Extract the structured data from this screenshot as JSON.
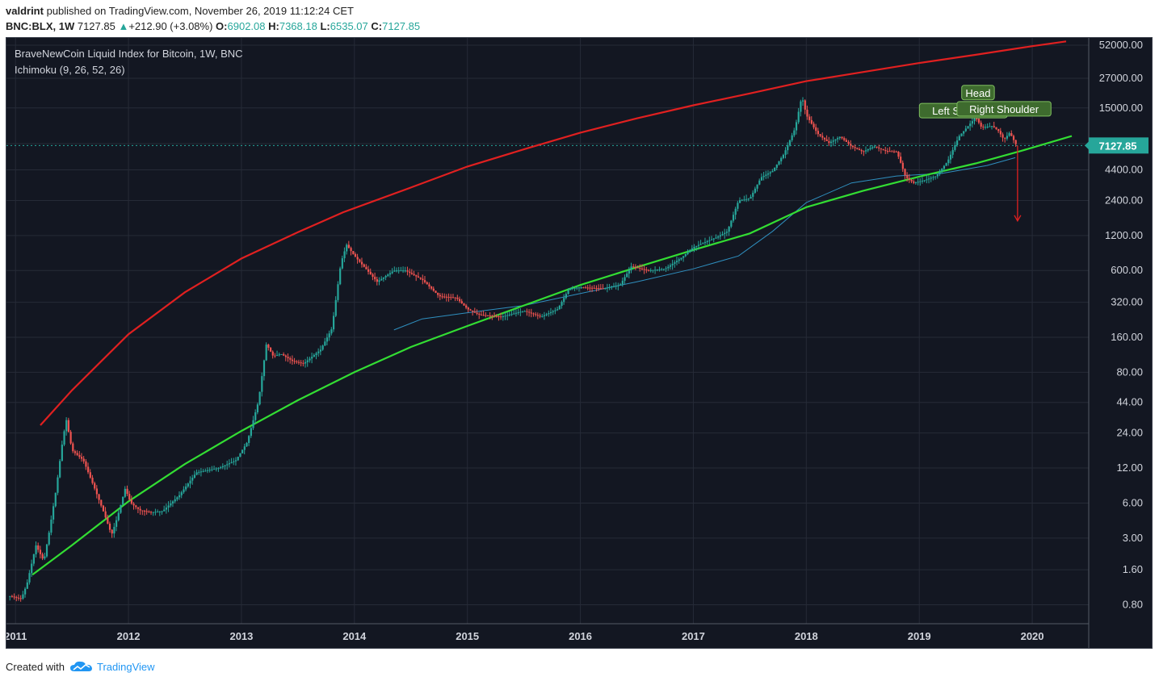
{
  "header": {
    "author": "valdrint",
    "published": "published on TradingView.com, November 26, 2019 11:12:24 CET"
  },
  "quote": {
    "symbol": "BNC:BLX, 1W",
    "last": "7127.85",
    "change_arrow": "▲",
    "change": "+212.90 (+3.08%)",
    "o_label": "O:",
    "o_value": "6902.08",
    "h_label": "H:",
    "h_value": "7368.18",
    "l_label": "L:",
    "l_value": "6535.07",
    "c_label": "C:",
    "c_value": "7127.85"
  },
  "footer": {
    "created_with": "Created with",
    "brand": "TradingView",
    "icon": "tradingview-cloud-icon"
  },
  "colors": {
    "background": "#131722",
    "up": "#26a69a",
    "down": "#ef5350",
    "resistance": "#e02020",
    "support": "#33dd33",
    "ichimoku": "#2f8fbf",
    "price_tag": "#26a69a",
    "label_bg": "#3e6b2e"
  },
  "chart_data": {
    "type": "candlestick",
    "title": "BraveNewCoin Liquid Index for Bitcoin, 1W, BNC",
    "indicator": "Ichimoku (9, 26, 52, 26)",
    "y_scale": "log",
    "ylim": [
      0.55,
      60000
    ],
    "xlim": [
      2010.92,
      2020.5
    ],
    "x_ticks": [
      "2011",
      "2012",
      "2013",
      "2014",
      "2015",
      "2016",
      "2017",
      "2018",
      "2019",
      "2020"
    ],
    "y_ticks": [
      "52000.00",
      "27000.00",
      "15000.00",
      "7400.00",
      "4400.00",
      "2400.00",
      "1200.00",
      "600.00",
      "320.00",
      "160.00",
      "80.00",
      "44.00",
      "24.00",
      "12.00",
      "6.00",
      "3.00",
      "1.60",
      "0.80"
    ],
    "last_price": "7127.85",
    "price_path": [
      [
        2010.95,
        0.95
      ],
      [
        2011.05,
        0.9
      ],
      [
        2011.1,
        1.2
      ],
      [
        2011.18,
        2.6
      ],
      [
        2011.25,
        1.9
      ],
      [
        2011.3,
        3.5
      ],
      [
        2011.36,
        8
      ],
      [
        2011.42,
        22
      ],
      [
        2011.45,
        31
      ],
      [
        2011.5,
        17
      ],
      [
        2011.6,
        14
      ],
      [
        2011.7,
        8
      ],
      [
        2011.78,
        5
      ],
      [
        2011.85,
        3.2
      ],
      [
        2011.9,
        4.5
      ],
      [
        2011.97,
        8
      ],
      [
        2012.02,
        6
      ],
      [
        2012.1,
        5.2
      ],
      [
        2012.2,
        5
      ],
      [
        2012.3,
        5.1
      ],
      [
        2012.45,
        7
      ],
      [
        2012.6,
        11
      ],
      [
        2012.7,
        11.5
      ],
      [
        2012.8,
        12
      ],
      [
        2012.95,
        14
      ],
      [
        2013.05,
        20
      ],
      [
        2013.15,
        45
      ],
      [
        2013.22,
        140
      ],
      [
        2013.28,
        110
      ],
      [
        2013.35,
        115
      ],
      [
        2013.45,
        100
      ],
      [
        2013.55,
        95
      ],
      [
        2013.7,
        125
      ],
      [
        2013.8,
        190
      ],
      [
        2013.88,
        700
      ],
      [
        2013.93,
        1000
      ],
      [
        2014.0,
        800
      ],
      [
        2014.1,
        620
      ],
      [
        2014.2,
        480
      ],
      [
        2014.35,
        600
      ],
      [
        2014.45,
        600
      ],
      [
        2014.6,
        500
      ],
      [
        2014.75,
        360
      ],
      [
        2014.9,
        350
      ],
      [
        2015.0,
        280
      ],
      [
        2015.1,
        250
      ],
      [
        2015.3,
        240
      ],
      [
        2015.5,
        270
      ],
      [
        2015.65,
        240
      ],
      [
        2015.8,
        280
      ],
      [
        2015.9,
        420
      ],
      [
        2016.0,
        430
      ],
      [
        2016.2,
        420
      ],
      [
        2016.35,
        450
      ],
      [
        2016.45,
        650
      ],
      [
        2016.6,
        600
      ],
      [
        2016.75,
        620
      ],
      [
        2016.9,
        780
      ],
      [
        2017.0,
        950
      ],
      [
        2017.1,
        1050
      ],
      [
        2017.2,
        1150
      ],
      [
        2017.3,
        1300
      ],
      [
        2017.4,
        2400
      ],
      [
        2017.5,
        2500
      ],
      [
        2017.6,
        3800
      ],
      [
        2017.7,
        4300
      ],
      [
        2017.8,
        6000
      ],
      [
        2017.9,
        10000
      ],
      [
        2017.96,
        19000
      ],
      [
        2018.0,
        13000
      ],
      [
        2018.1,
        9000
      ],
      [
        2018.2,
        7500
      ],
      [
        2018.3,
        8500
      ],
      [
        2018.4,
        7000
      ],
      [
        2018.5,
        6300
      ],
      [
        2018.6,
        7000
      ],
      [
        2018.7,
        6400
      ],
      [
        2018.8,
        6300
      ],
      [
        2018.88,
        3800
      ],
      [
        2018.95,
        3400
      ],
      [
        2019.05,
        3600
      ],
      [
        2019.15,
        3900
      ],
      [
        2019.25,
        5200
      ],
      [
        2019.35,
        8500
      ],
      [
        2019.45,
        11000
      ],
      [
        2019.5,
        12500
      ],
      [
        2019.55,
        10200
      ],
      [
        2019.65,
        10500
      ],
      [
        2019.7,
        9500
      ],
      [
        2019.75,
        8000
      ],
      [
        2019.8,
        9200
      ],
      [
        2019.86,
        7127.85
      ]
    ],
    "resistance_curve": [
      [
        2011.22,
        28
      ],
      [
        2011.5,
        56
      ],
      [
        2012.0,
        170
      ],
      [
        2012.5,
        390
      ],
      [
        2013.0,
        760
      ],
      [
        2013.5,
        1280
      ],
      [
        2013.9,
        1900
      ],
      [
        2014.5,
        3100
      ],
      [
        2015.0,
        4700
      ],
      [
        2015.5,
        6600
      ],
      [
        2016.0,
        9200
      ],
      [
        2016.5,
        12200
      ],
      [
        2017.0,
        15800
      ],
      [
        2017.5,
        20000
      ],
      [
        2018.0,
        25500
      ],
      [
        2018.5,
        30500
      ],
      [
        2019.0,
        36500
      ],
      [
        2019.5,
        43000
      ],
      [
        2020.0,
        51000
      ],
      [
        2020.3,
        56000
      ]
    ],
    "support_curve": [
      [
        2011.15,
        1.45
      ],
      [
        2011.5,
        2.6
      ],
      [
        2012.0,
        6.2
      ],
      [
        2012.5,
        13
      ],
      [
        2013.0,
        25
      ],
      [
        2013.5,
        46
      ],
      [
        2014.0,
        80
      ],
      [
        2014.5,
        132
      ],
      [
        2015.0,
        200
      ],
      [
        2015.5,
        300
      ],
      [
        2016.0,
        450
      ],
      [
        2016.5,
        640
      ],
      [
        2017.0,
        900
      ],
      [
        2017.5,
        1250
      ],
      [
        2018.0,
        2100
      ],
      [
        2018.5,
        2900
      ],
      [
        2019.0,
        3850
      ],
      [
        2019.5,
        5000
      ],
      [
        2019.9,
        6400
      ],
      [
        2020.35,
        8600
      ]
    ],
    "ichimoku_curve": [
      [
        2014.35,
        185
      ],
      [
        2014.6,
        230
      ],
      [
        2015.0,
        260
      ],
      [
        2015.5,
        300
      ],
      [
        2016.0,
        380
      ],
      [
        2016.5,
        480
      ],
      [
        2017.0,
        620
      ],
      [
        2017.4,
        800
      ],
      [
        2017.7,
        1300
      ],
      [
        2018.0,
        2300
      ],
      [
        2018.4,
        3400
      ],
      [
        2018.8,
        3900
      ],
      [
        2019.2,
        4100
      ],
      [
        2019.6,
        4800
      ],
      [
        2019.85,
        5600
      ]
    ],
    "annotations": [
      {
        "text": "Head",
        "x": 2019.52,
        "y": 20000
      },
      {
        "text": "Left Shoulder",
        "x": 2019.39,
        "y": 14000
      },
      {
        "text": "Right Shoulder",
        "x": 2019.75,
        "y": 14500
      }
    ],
    "target_arrow": {
      "x": 2019.87,
      "from": 7127.85,
      "to": 1600
    }
  }
}
